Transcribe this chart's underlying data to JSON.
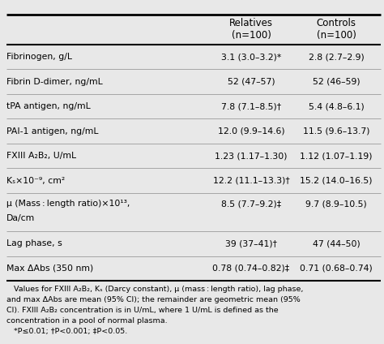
{
  "col_headers": [
    [
      "Relatives",
      "(n=100)"
    ],
    [
      "Controls",
      "(n=100)"
    ]
  ],
  "rows": [
    {
      "label": "Fibrinogen, g/L",
      "rel": "3.1 (3.0–3.2)*",
      "con": "2.8 (2.7–2.9)",
      "multiline": false
    },
    {
      "label": "Fibrin D-dimer, ng/mL",
      "rel": "52 (47–57)",
      "con": "52 (46–59)",
      "multiline": false
    },
    {
      "label": "tPA antigen, ng/mL",
      "rel": "7.8 (7.1–8.5)†",
      "con": "5.4 (4.8–6.1)",
      "multiline": false
    },
    {
      "label": "PAI-1 antigen, ng/mL",
      "rel": "12.0 (9.9–14.6)",
      "con": "11.5 (9.6–13.7)",
      "multiline": false
    },
    {
      "label": "FXIII A₂B₂, U/mL",
      "rel": "1.23 (1.17–1.30)",
      "con": "1.12 (1.07–1.19)",
      "multiline": false
    },
    {
      "label": "Kₛ×10⁻⁹, cm²",
      "rel": "12.2 (11.1–13.3)†",
      "con": "15.2 (14.0–16.5)",
      "multiline": false
    },
    {
      "label": "μ (Mass : length ratio)×10¹³,",
      "label2": "Da/cm",
      "rel": "8.5 (7.7–9.2)‡",
      "con": "9.7 (8.9–10.5)",
      "multiline": true
    },
    {
      "label": "Lag phase, s",
      "rel": "39 (37–41)†",
      "con": "47 (44–50)",
      "multiline": false
    },
    {
      "label": "Max ΔAbs (350 nm)",
      "rel": "0.78 (0.74–0.82)‡",
      "con": "0.71 (0.68–0.74)",
      "multiline": false
    }
  ],
  "footnote_lines": [
    "   Values for FXIII A₂B₂, Kₛ (Darcy constant), μ (mass : length ratio), lag phase,",
    "and max ΔAbs are mean (95% CI); the remainder are geometric mean (95%",
    "CI). FXIII A₂B₂ concentration is in U/mL, where 1 U/mL is defined as the",
    "concentration in a pool of normal plasma.",
    "   *P≤0.01; †P<0.001; ‡P<0.05."
  ],
  "bg_color": "#e8e8e8",
  "font_size": 7.8,
  "header_font_size": 8.5
}
